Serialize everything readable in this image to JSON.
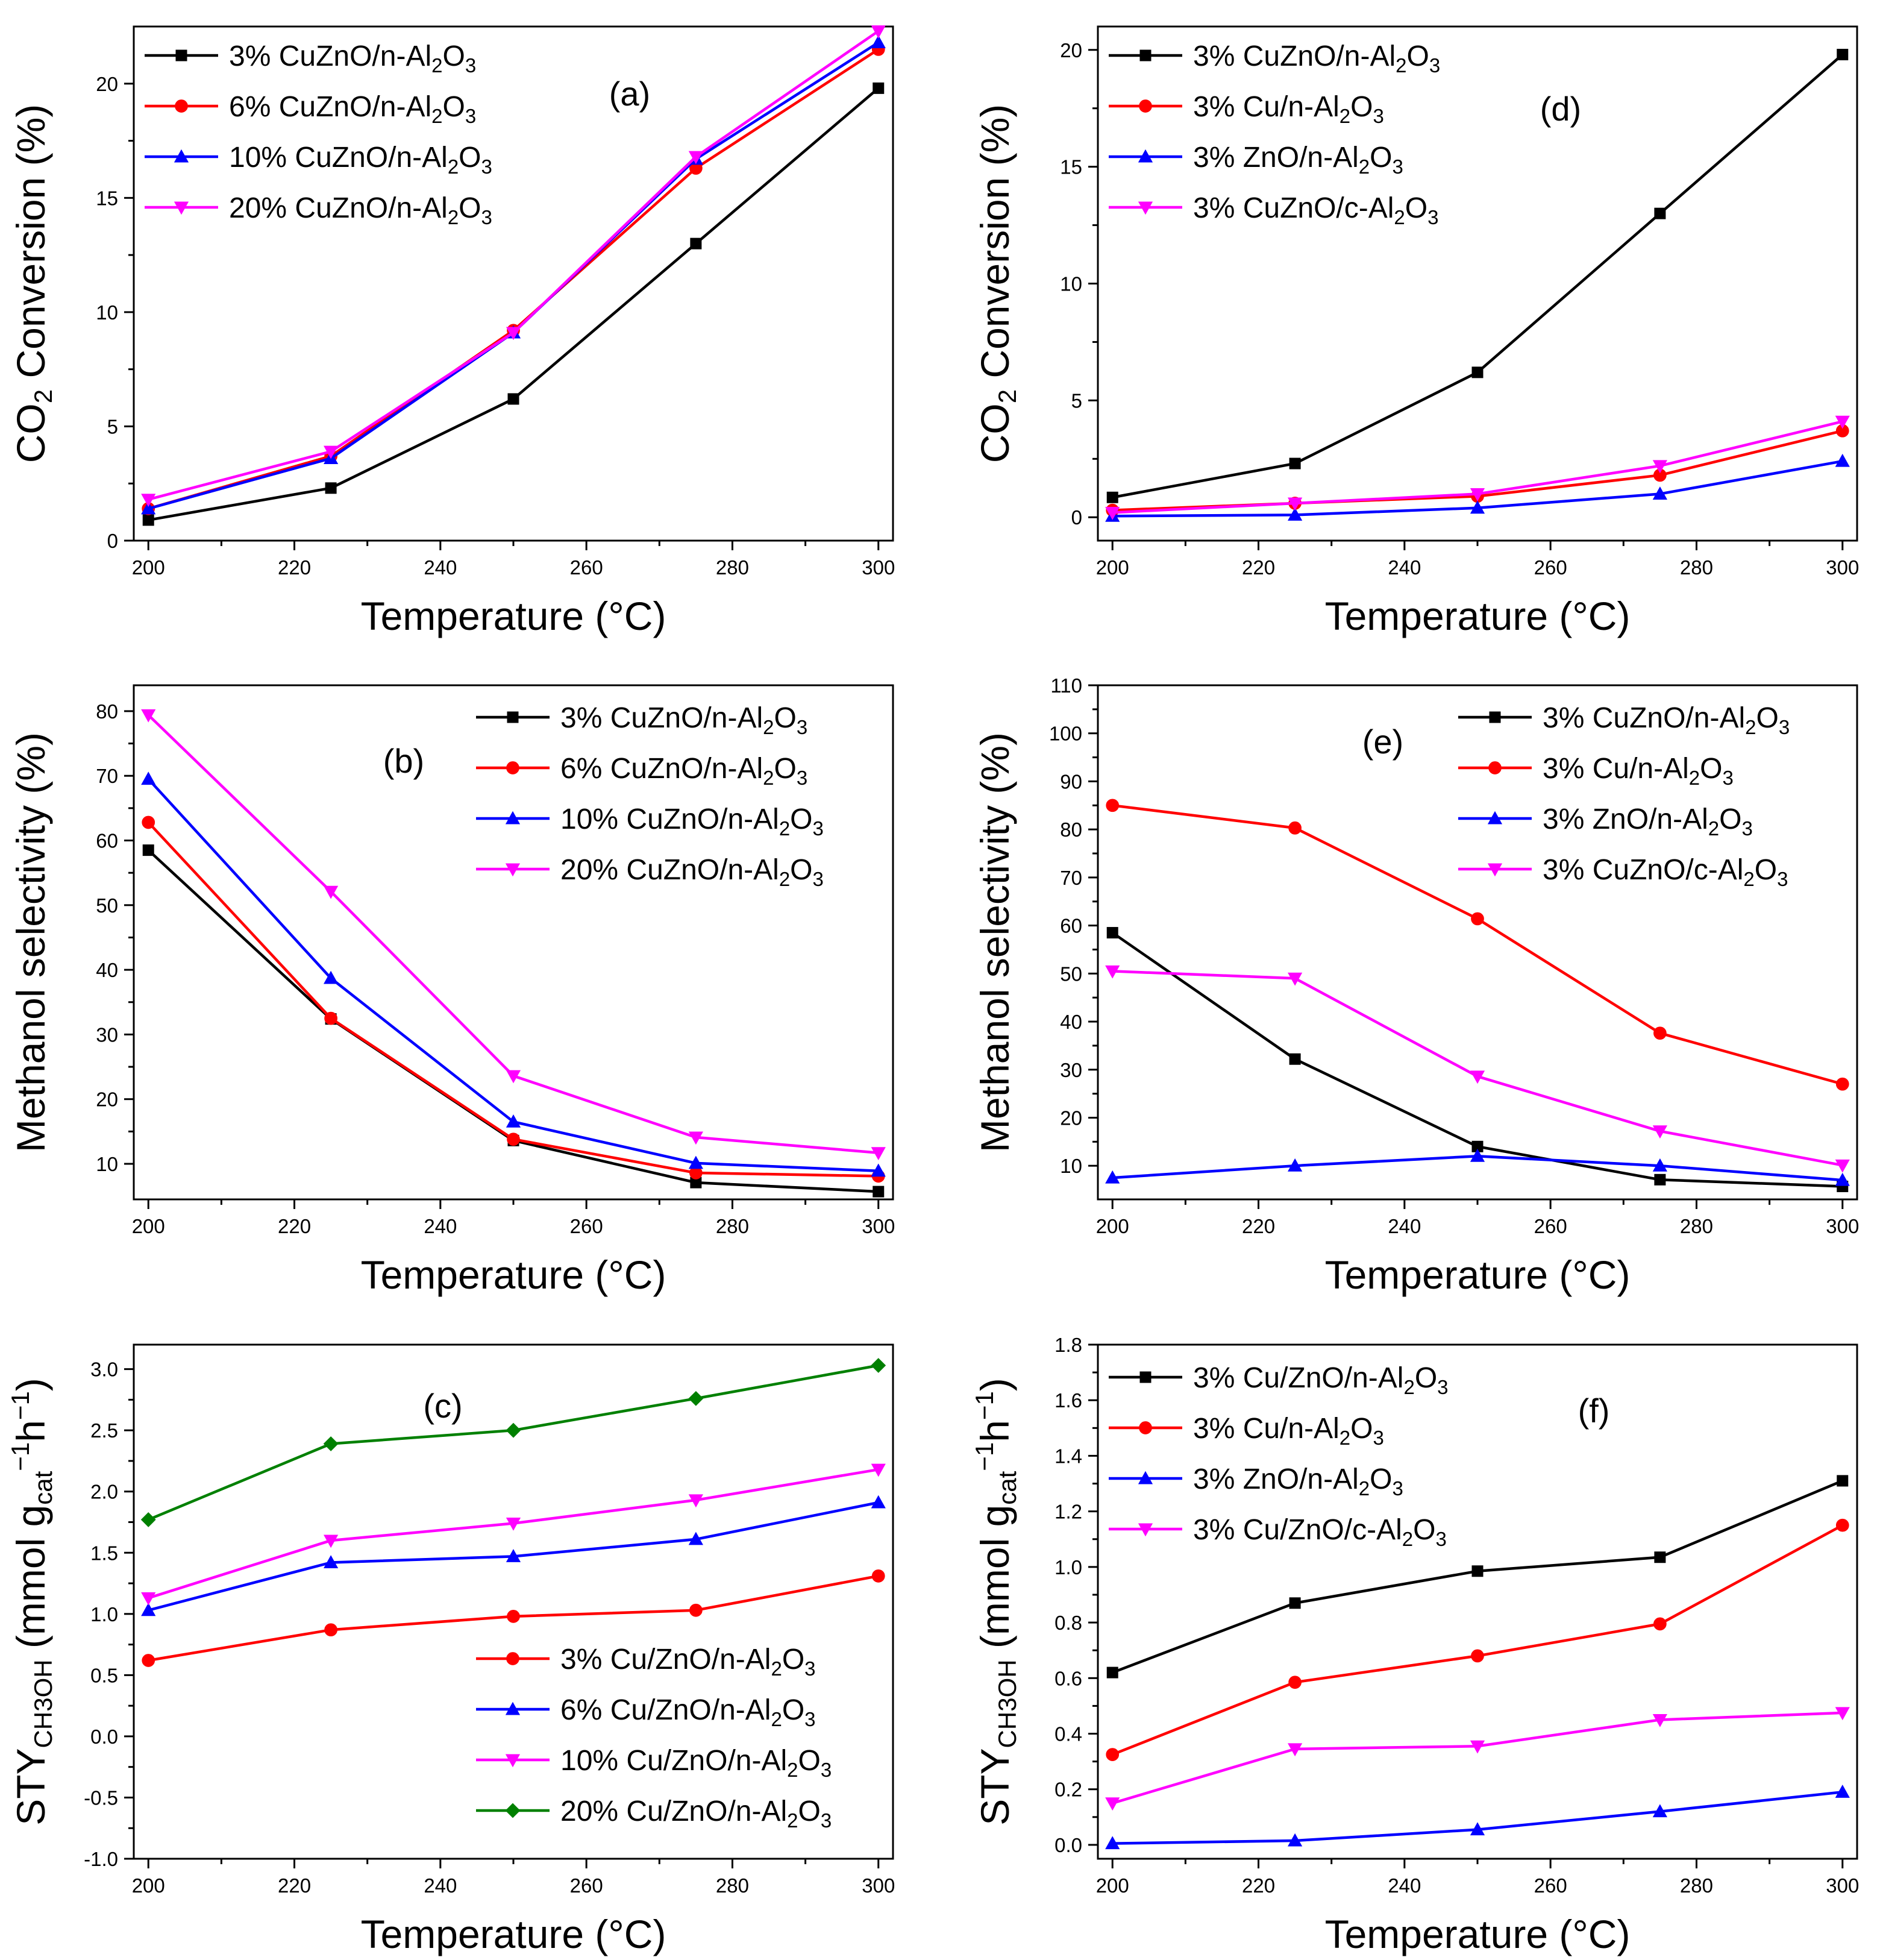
{
  "figure": {
    "colors": {
      "black": "#000000",
      "red": "#ff0000",
      "blue": "#0000ff",
      "magenta": "#ff00ff",
      "green": "#008000"
    }
  },
  "chart_data": [
    {
      "id": "a",
      "type": "line",
      "panel_label": "(a)",
      "xlabel": "Temperature (°C)",
      "ylabel": "CO2 Conversion (%)",
      "ylabel_parts": {
        "pre": "CO",
        "sub": "2",
        "post": " Conversion (%)"
      },
      "xlim": [
        198,
        302
      ],
      "ylim": [
        0,
        22.5
      ],
      "xticks": [
        200,
        220,
        240,
        260,
        280,
        300
      ],
      "yticks": [
        0,
        5,
        10,
        15,
        20
      ],
      "legend_position": "top-left",
      "x": [
        200,
        225,
        250,
        275,
        300
      ],
      "series": [
        {
          "name": "3% CuZnO/n-Al2O3",
          "legend_parts": {
            "pre": "3% CuZnO/n-Al",
            "sub1": "2",
            "mid": "O",
            "sub2": "3"
          },
          "color": "black",
          "marker": "square",
          "values": [
            0.9,
            2.3,
            6.2,
            13.0,
            19.8
          ]
        },
        {
          "name": "6% CuZnO/n-Al2O3",
          "legend_parts": {
            "pre": "6% CuZnO/n-Al",
            "sub1": "2",
            "mid": "O",
            "sub2": "3"
          },
          "color": "red",
          "marker": "circle",
          "values": [
            1.4,
            3.7,
            9.2,
            16.3,
            21.5
          ]
        },
        {
          "name": "10% CuZnO/n-Al2O3",
          "legend_parts": {
            "pre": "10% CuZnO/n-Al",
            "sub1": "2",
            "mid": "O",
            "sub2": "3"
          },
          "color": "blue",
          "marker": "triangle-up",
          "values": [
            1.4,
            3.6,
            9.1,
            16.7,
            21.8
          ]
        },
        {
          "name": "20% CuZnO/n-Al2O3",
          "legend_parts": {
            "pre": "20% CuZnO/n-Al",
            "sub1": "2",
            "mid": "O",
            "sub2": "3"
          },
          "color": "magenta",
          "marker": "triangle-down",
          "values": [
            1.8,
            3.9,
            9.1,
            16.8,
            22.3
          ]
        }
      ]
    },
    {
      "id": "d",
      "type": "line",
      "panel_label": "(d)",
      "xlabel": "Temperature (°C)",
      "ylabel": "CO2 Conversion (%)",
      "ylabel_parts": {
        "pre": "CO",
        "sub": "2",
        "post": " Conversion (%)"
      },
      "xlim": [
        198,
        302
      ],
      "ylim": [
        -1,
        21
      ],
      "xticks": [
        200,
        220,
        240,
        260,
        280,
        300
      ],
      "yticks": [
        0,
        5,
        10,
        15,
        20
      ],
      "legend_position": "top-left",
      "x": [
        200,
        225,
        250,
        275,
        300
      ],
      "series": [
        {
          "name": "3% CuZnO/n-Al2O3",
          "legend_parts": {
            "pre": "3% CuZnO/n-Al",
            "sub1": "2",
            "mid": "O",
            "sub2": "3"
          },
          "color": "black",
          "marker": "square",
          "values": [
            0.85,
            2.3,
            6.2,
            13.0,
            19.8
          ]
        },
        {
          "name": "3% Cu/n-Al2O3",
          "legend_parts": {
            "pre": "3% Cu/n-Al",
            "sub1": "2",
            "mid": "O",
            "sub2": "3"
          },
          "color": "red",
          "marker": "circle",
          "values": [
            0.3,
            0.6,
            0.9,
            1.8,
            3.7
          ]
        },
        {
          "name": "3% ZnO/n-Al2O3",
          "legend_parts": {
            "pre": "3% ZnO/n-Al",
            "sub1": "2",
            "mid": "O",
            "sub2": "3"
          },
          "color": "blue",
          "marker": "triangle-up",
          "values": [
            0.05,
            0.1,
            0.4,
            1.0,
            2.4
          ]
        },
        {
          "name": "3% CuZnO/c-Al2O3",
          "legend_parts": {
            "pre": "3% CuZnO/c-Al",
            "sub1": "2",
            "mid": "O",
            "sub2": "3"
          },
          "color": "magenta",
          "marker": "triangle-down",
          "values": [
            0.2,
            0.6,
            1.0,
            2.2,
            4.1
          ]
        }
      ]
    },
    {
      "id": "b",
      "type": "line",
      "panel_label": "(b)",
      "xlabel": "Temperature (°C)",
      "ylabel": "Methanol selectivity (%)",
      "ylabel_parts": {
        "pre": "Methanol selectivity (%)",
        "sub": "",
        "post": ""
      },
      "xlim": [
        198,
        302
      ],
      "ylim": [
        4.5,
        84
      ],
      "xticks": [
        200,
        220,
        240,
        260,
        280,
        300
      ],
      "yticks": [
        10,
        20,
        30,
        40,
        50,
        60,
        70,
        80
      ],
      "legend_position": "top-right",
      "x": [
        200,
        225,
        250,
        275,
        300
      ],
      "series": [
        {
          "name": "3% CuZnO/n-Al2O3",
          "legend_parts": {
            "pre": "3% CuZnO/n-Al",
            "sub1": "2",
            "mid": "O",
            "sub2": "3"
          },
          "color": "black",
          "marker": "square",
          "values": [
            58.5,
            32.4,
            13.6,
            7.1,
            5.7
          ]
        },
        {
          "name": "6% CuZnO/n-Al2O3",
          "legend_parts": {
            "pre": "6% CuZnO/n-Al",
            "sub1": "2",
            "mid": "O",
            "sub2": "3"
          },
          "color": "red",
          "marker": "circle",
          "values": [
            62.8,
            32.5,
            13.8,
            8.6,
            8.1
          ]
        },
        {
          "name": "10% CuZnO/n-Al2O3",
          "legend_parts": {
            "pre": "10% CuZnO/n-Al",
            "sub1": "2",
            "mid": "O",
            "sub2": "3"
          },
          "color": "blue",
          "marker": "triangle-up",
          "values": [
            69.5,
            38.7,
            16.5,
            10.1,
            8.9
          ]
        },
        {
          "name": "20% CuZnO/n-Al2O3",
          "legend_parts": {
            "pre": "20% CuZnO/n-Al",
            "sub1": "2",
            "mid": "O",
            "sub2": "3"
          },
          "color": "magenta",
          "marker": "triangle-down",
          "values": [
            79.4,
            52.1,
            23.6,
            14.1,
            11.7
          ]
        }
      ]
    },
    {
      "id": "e",
      "type": "line",
      "panel_label": "(e)",
      "xlabel": "Temperature (°C)",
      "ylabel": "Methanol selectivity (%)",
      "ylabel_parts": {
        "pre": "Methanol selectivity (%)",
        "sub": "",
        "post": ""
      },
      "xlim": [
        198,
        302
      ],
      "ylim": [
        3,
        110
      ],
      "xticks": [
        200,
        220,
        240,
        260,
        280,
        300
      ],
      "yticks": [
        10,
        20,
        30,
        40,
        50,
        60,
        70,
        80,
        90,
        100,
        110
      ],
      "legend_position": "top-right",
      "x": [
        200,
        225,
        250,
        275,
        300
      ],
      "series": [
        {
          "name": "3% CuZnO/n-Al2O3",
          "legend_parts": {
            "pre": "3% CuZnO/n-Al",
            "sub1": "2",
            "mid": "O",
            "sub2": "3"
          },
          "color": "black",
          "marker": "square",
          "values": [
            58.5,
            32.2,
            14.0,
            7.1,
            5.7
          ]
        },
        {
          "name": "3% Cu/n-Al2O3",
          "legend_parts": {
            "pre": "3% Cu/n-Al",
            "sub1": "2",
            "mid": "O",
            "sub2": "3"
          },
          "color": "red",
          "marker": "circle",
          "values": [
            85.0,
            80.3,
            61.4,
            37.6,
            27.0
          ]
        },
        {
          "name": "3% ZnO/n-Al2O3",
          "legend_parts": {
            "pre": "3% ZnO/n-Al",
            "sub1": "2",
            "mid": "O",
            "sub2": "3"
          },
          "color": "blue",
          "marker": "triangle-up",
          "values": [
            7.5,
            10.0,
            12.0,
            10.0,
            7.0
          ]
        },
        {
          "name": "3% CuZnO/c-Al2O3",
          "legend_parts": {
            "pre": "3% CuZnO/c-Al",
            "sub1": "2",
            "mid": "O",
            "sub2": "3"
          },
          "color": "magenta",
          "marker": "triangle-down",
          "values": [
            50.5,
            49.0,
            28.6,
            17.2,
            10.1
          ]
        }
      ]
    },
    {
      "id": "c",
      "type": "line",
      "panel_label": "(c)",
      "xlabel": "Temperature (°C)",
      "ylabel": "STYCH3OH (mmol gcat−1h−1)",
      "ylabel_parts": {
        "pre": "STY",
        "sub": "CH3OH",
        "post": " (mmol g",
        "sub2": "cat",
        "sup": "−1",
        "post2": "h",
        "sup2": "−1",
        "post3": ")"
      },
      "xlim": [
        198,
        302
      ],
      "ylim": [
        -1.0,
        3.2
      ],
      "xticks": [
        200,
        220,
        240,
        260,
        280,
        300
      ],
      "yticks": [
        -1.0,
        -0.5,
        0.0,
        0.5,
        1.0,
        1.5,
        2.0,
        2.5,
        3.0
      ],
      "ytick_labels": [
        "-1.0",
        "-0.5",
        "0.0",
        "0.5",
        "1.0",
        "1.5",
        "2.0",
        "2.5",
        "3.0"
      ],
      "legend_position": "bottom-right",
      "x": [
        200,
        225,
        250,
        275,
        300
      ],
      "series": [
        {
          "name": "3% Cu/ZnO/n-Al2O3",
          "legend_parts": {
            "pre": "3% Cu/ZnO/n-Al",
            "sub1": "2",
            "mid": "O",
            "sub2": "3"
          },
          "color": "red",
          "marker": "circle",
          "values": [
            0.62,
            0.87,
            0.98,
            1.03,
            1.31
          ]
        },
        {
          "name": "6% Cu/ZnO/n-Al2O3",
          "legend_parts": {
            "pre": "6% Cu/ZnO/n-Al",
            "sub1": "2",
            "mid": "O",
            "sub2": "3"
          },
          "color": "blue",
          "marker": "triangle-up",
          "values": [
            1.03,
            1.42,
            1.47,
            1.61,
            1.91
          ]
        },
        {
          "name": "10% Cu/ZnO/n-Al2O3",
          "legend_parts": {
            "pre": "10% Cu/ZnO/n-Al",
            "sub1": "2",
            "mid": "O",
            "sub2": "3"
          },
          "color": "magenta",
          "marker": "triangle-down",
          "values": [
            1.13,
            1.6,
            1.74,
            1.93,
            2.18
          ]
        },
        {
          "name": "20% Cu/ZnO/n-Al2O3",
          "legend_parts": {
            "pre": "20% Cu/ZnO/n-Al",
            "sub1": "2",
            "mid": "O",
            "sub2": "3"
          },
          "color": "green",
          "marker": "diamond",
          "values": [
            1.77,
            2.39,
            2.5,
            2.76,
            3.03
          ]
        }
      ]
    },
    {
      "id": "f",
      "type": "line",
      "panel_label": "(f)",
      "xlabel": "Temperature (°C)",
      "ylabel": "STYCH3OH (mmol gcat−1h−1)",
      "ylabel_parts": {
        "pre": "STY",
        "sub": "CH3OH",
        "post": " (mmol g",
        "sub2": "cat",
        "sup": "−1",
        "post2": "h",
        "sup2": "−1",
        "post3": ")"
      },
      "xlim": [
        198,
        302
      ],
      "ylim": [
        -0.05,
        1.8
      ],
      "xticks": [
        200,
        220,
        240,
        260,
        280,
        300
      ],
      "yticks": [
        0.0,
        0.2,
        0.4,
        0.6,
        0.8,
        1.0,
        1.2,
        1.4,
        1.6,
        1.8
      ],
      "ytick_labels": [
        "0.0",
        "0.2",
        "0.4",
        "0.6",
        "0.8",
        "1.0",
        "1.2",
        "1.4",
        "1.6",
        "1.8"
      ],
      "legend_position": "top-left",
      "x": [
        200,
        225,
        250,
        275,
        300
      ],
      "series": [
        {
          "name": "3% Cu/ZnO/n-Al2O3",
          "legend_parts": {
            "pre": "3% Cu/ZnO/n-Al",
            "sub1": "2",
            "mid": "O",
            "sub2": "3"
          },
          "color": "black",
          "marker": "square",
          "values": [
            0.62,
            0.87,
            0.985,
            1.035,
            1.31
          ]
        },
        {
          "name": "3% Cu/n-Al2O3",
          "legend_parts": {
            "pre": "3% Cu/n-Al",
            "sub1": "2",
            "mid": "O",
            "sub2": "3"
          },
          "color": "red",
          "marker": "circle",
          "values": [
            0.325,
            0.585,
            0.68,
            0.795,
            1.15
          ]
        },
        {
          "name": "3% ZnO/n-Al2O3",
          "legend_parts": {
            "pre": "3% ZnO/n-Al",
            "sub1": "2",
            "mid": "O",
            "sub2": "3"
          },
          "color": "blue",
          "marker": "triangle-up",
          "values": [
            0.005,
            0.015,
            0.055,
            0.12,
            0.19
          ]
        },
        {
          "name": "3% Cu/ZnO/c-Al2O3",
          "legend_parts": {
            "pre": "3% Cu/ZnO/c-Al",
            "sub1": "2",
            "mid": "O",
            "sub2": "3"
          },
          "color": "magenta",
          "marker": "triangle-down",
          "values": [
            0.15,
            0.345,
            0.355,
            0.45,
            0.475
          ]
        }
      ]
    }
  ]
}
